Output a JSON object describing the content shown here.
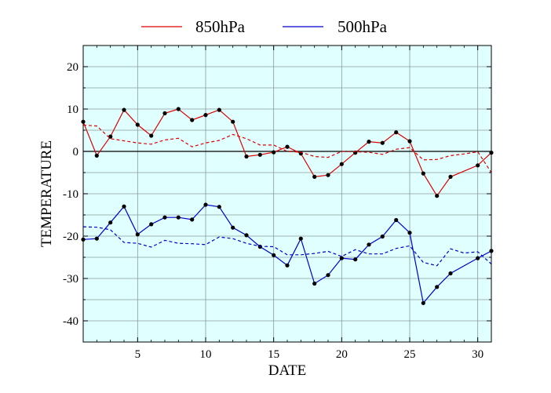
{
  "chart_data": {
    "type": "line",
    "title": "",
    "xlabel": "DATE",
    "ylabel": "TEMPERATURE",
    "xlim": [
      1,
      31
    ],
    "ylim": [
      -45,
      25
    ],
    "xticks": [
      5,
      10,
      15,
      20,
      25,
      30
    ],
    "yticks": [
      -40,
      -30,
      -20,
      -10,
      0,
      10,
      20
    ],
    "grid": true,
    "legend_position": "top",
    "background_color": "#e0ffff",
    "x": [
      1,
      2,
      3,
      4,
      5,
      6,
      7,
      8,
      9,
      10,
      11,
      12,
      13,
      14,
      15,
      16,
      17,
      18,
      19,
      20,
      21,
      22,
      23,
      24,
      25,
      26,
      27,
      28,
      29,
      30,
      31
    ],
    "series": [
      {
        "name": "850hPa",
        "color": "#dd0000",
        "style": "solid",
        "markers": true,
        "values": [
          7,
          -1,
          3.5,
          9.8,
          6.3,
          3.7,
          9,
          10,
          7.4,
          8.6,
          9.8,
          7,
          -1.2,
          -0.8,
          -0.2,
          1.1,
          -0.5,
          -6,
          -5.6,
          -3,
          -0.3,
          2.3,
          2,
          4.5,
          2.4,
          -5.2,
          -10.5,
          -6,
          null,
          -3.3,
          -0.3
        ]
      },
      {
        "name": "500hPa",
        "color": "#0000cc",
        "style": "solid",
        "markers": true,
        "values": [
          -20.8,
          -20.6,
          -16.8,
          -13,
          -19.6,
          -17.2,
          -15.6,
          -15.6,
          -16.1,
          -12.6,
          -13.1,
          -18,
          -19.8,
          -22.5,
          -24.5,
          -26.9,
          -20.6,
          -31.2,
          -29.2,
          -25.2,
          -25.5,
          -22,
          -20.1,
          -16.2,
          -19.2,
          -35.8,
          -32,
          -28.8,
          null,
          -25.2,
          -23.5
        ]
      },
      {
        "name": "",
        "color": "#dd0000",
        "style": "dashed",
        "markers": false,
        "values": [
          6.2,
          6,
          3,
          2.5,
          2,
          1.7,
          2.7,
          3.1,
          1.1,
          2,
          2.6,
          4,
          3,
          1.5,
          1.5,
          0,
          -0.2,
          -1.2,
          -1.4,
          0,
          -0.1,
          -0.2,
          -0.7,
          0.5,
          0.9,
          -2,
          -1.9,
          -1,
          -0.6,
          -0.1,
          -5
        ]
      },
      {
        "name": "",
        "color": "#0000cc",
        "style": "dashed",
        "markers": false,
        "values": [
          -17.8,
          -17.9,
          -18.5,
          -21.5,
          -21.7,
          -22.6,
          -21,
          -21.7,
          -21.8,
          -22,
          -20.2,
          -20.6,
          -21.7,
          -22.4,
          -22.5,
          -24.4,
          -24.4,
          -24.1,
          -23.6,
          -24.8,
          -23.2,
          -24.2,
          -24.2,
          -22.9,
          -22.3,
          -26.2,
          -27,
          -23,
          -24,
          -23.7,
          -26.6
        ]
      }
    ],
    "legend": [
      {
        "label": "850hPa",
        "color": "#dd0000"
      },
      {
        "label": "500hPa",
        "color": "#0000cc"
      }
    ]
  }
}
